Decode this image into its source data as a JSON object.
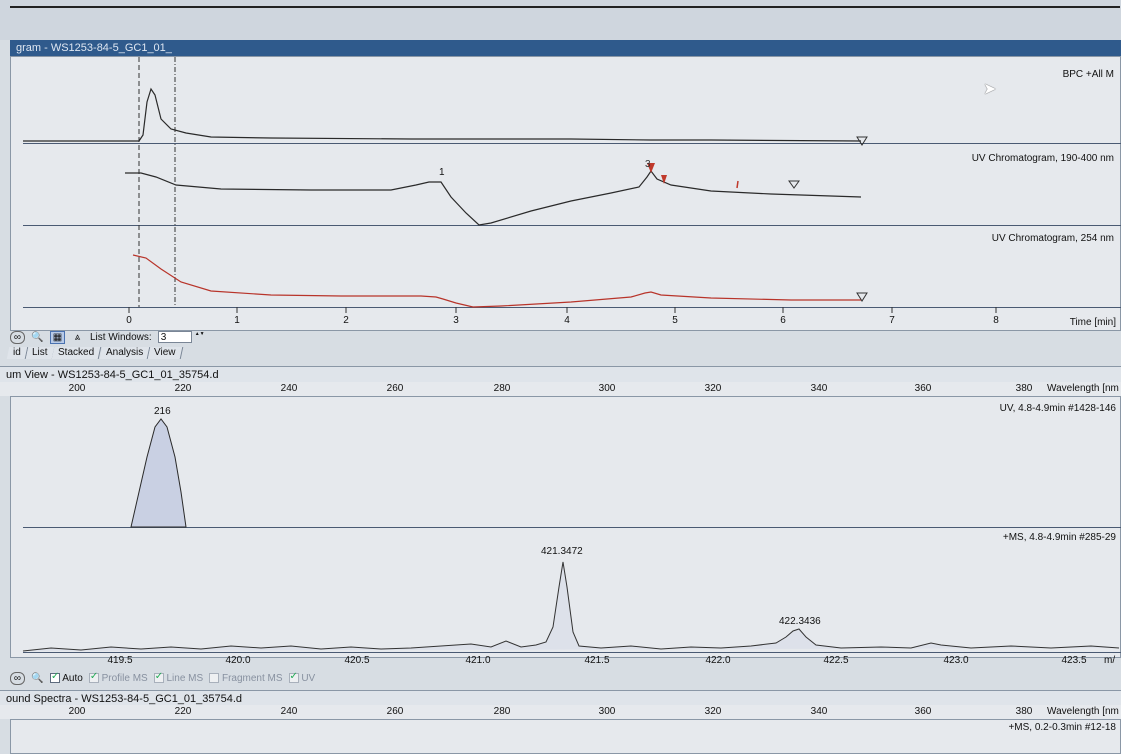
{
  "chromatogram": {
    "window_title": "gram - WS1253-84-5_GC1_01_",
    "traces": [
      {
        "label": "BPC +All M"
      },
      {
        "label": "UV Chromatogram, 190-400 nm"
      },
      {
        "label": "UV Chromatogram, 254 nm"
      }
    ],
    "peak_marker": "1",
    "peak_marker2": "3",
    "x_axis_label": "Time [min]",
    "x_ticks": [
      "0",
      "1",
      "2",
      "3",
      "4",
      "5",
      "6",
      "7",
      "8"
    ]
  },
  "toolbar1": {
    "list_windows_label": "List Windows:",
    "list_windows_value": "3"
  },
  "tabs": [
    "id",
    "List",
    "Stacked",
    "Analysis",
    "View"
  ],
  "spectrum": {
    "window_title": "um View - WS1253-84-5_GC1_01_35754.d",
    "wavelength_label": "Wavelength [nm",
    "wavelength_ticks": [
      "200",
      "220",
      "240",
      "260",
      "280",
      "300",
      "320",
      "340",
      "360",
      "380"
    ],
    "uv_label": "UV, 4.8-4.9min #1428-146",
    "uv_peak_label": "216",
    "ms_label": "+MS, 4.8-4.9min #285-29",
    "ms_peak1": "421.3472",
    "ms_peak2": "422.3436",
    "mz_ticks": [
      "419.5",
      "420.0",
      "420.5",
      "421.0",
      "421.5",
      "422.0",
      "422.5",
      "423.0",
      "423.5"
    ],
    "mz_label": "m/"
  },
  "toolbar2": {
    "auto": "Auto",
    "profile_ms": "Profile MS",
    "line_ms": "Line MS",
    "fragment_ms": "Fragment MS",
    "uv": "UV"
  },
  "compound": {
    "window_title": "ound Spectra - WS1253-84-5_GC1_01_35754.d",
    "wavelength_label": "Wavelength [nm",
    "wavelength_ticks": [
      "200",
      "220",
      "240",
      "260",
      "280",
      "300",
      "320",
      "340",
      "360",
      "380"
    ],
    "ms_label": "+MS, 0.2-0.3min #12-18"
  },
  "colors": {
    "titlebar": "#2f5a8c",
    "trace_black": "#2a2a2a",
    "trace_red": "#b8342a",
    "fill": "#c9d0e3"
  }
}
